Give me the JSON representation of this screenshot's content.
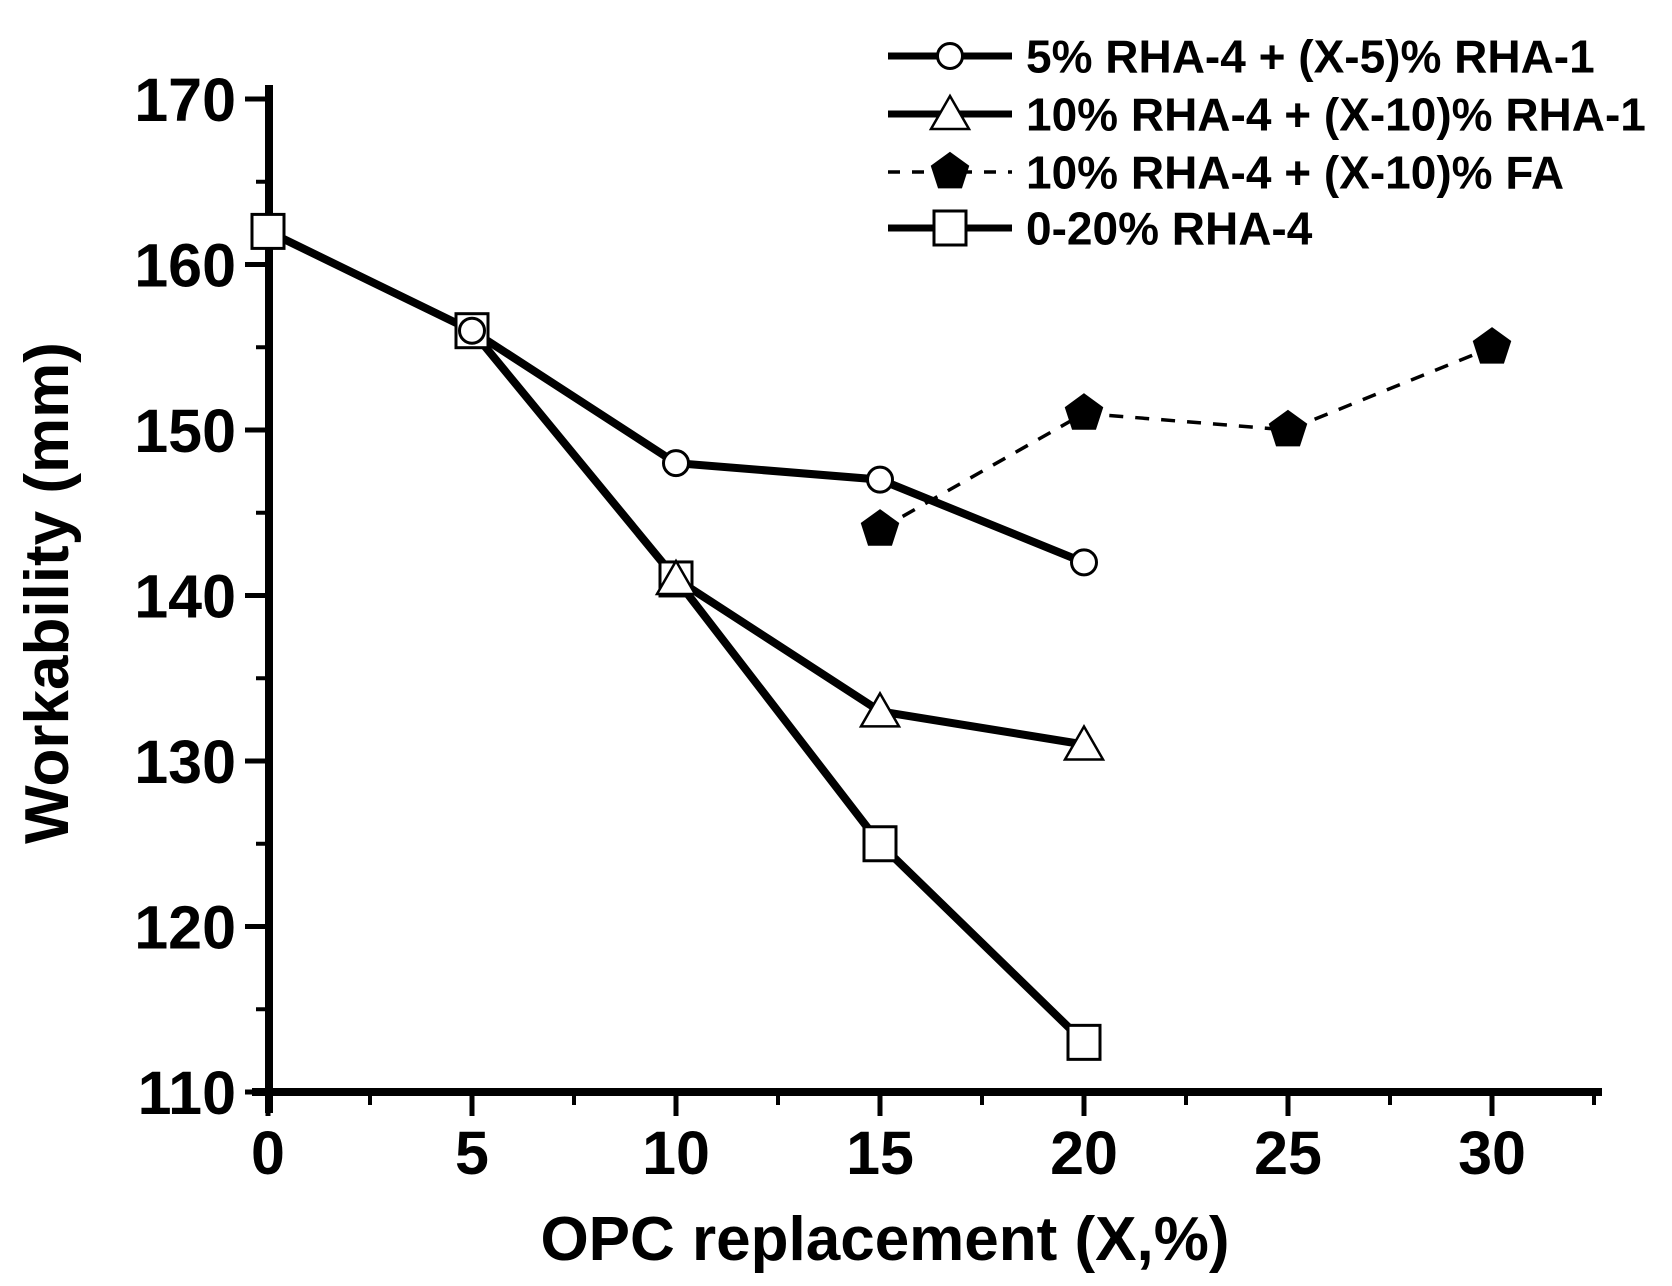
{
  "figure": {
    "background_color": "#ffffff",
    "ink_color": "#000000"
  },
  "chart_data": {
    "type": "line",
    "title": "",
    "xlabel": "OPC replacement (X,%)",
    "ylabel": "Workability (mm)",
    "xlim": [
      0,
      32.5
    ],
    "ylim": [
      110,
      170
    ],
    "x_major_ticks": [
      0,
      5,
      10,
      15,
      20,
      25,
      30
    ],
    "x_minor_ticks": [
      2.5,
      7.5,
      12.5,
      17.5,
      22.5,
      27.5,
      32.5
    ],
    "y_major_ticks": [
      110,
      120,
      130,
      140,
      150,
      160,
      170
    ],
    "y_minor_ticks": [
      115,
      125,
      135,
      145,
      155,
      165
    ],
    "grid": false,
    "legend_position": "top-right",
    "series": [
      {
        "name": "5% RHA-4  + (X-5)% RHA-1",
        "marker": "circle",
        "marker_fill": "open",
        "line_style": "solid",
        "x": [
          5,
          10,
          15,
          20
        ],
        "y": [
          156,
          148,
          147,
          142
        ]
      },
      {
        "name": "10% RHA-4  + (X-10)% RHA-1",
        "marker": "triangle",
        "marker_fill": "open",
        "line_style": "solid",
        "x": [
          10,
          15,
          20
        ],
        "y": [
          141,
          133,
          131
        ]
      },
      {
        "name": "10% RHA-4  + (X-10)% FA",
        "marker": "pentagon",
        "marker_fill": "solid",
        "line_style": "dashed",
        "x": [
          15,
          20,
          25,
          30
        ],
        "y": [
          144,
          151,
          150,
          155
        ]
      },
      {
        "name": "0-20% RHA-4",
        "marker": "square",
        "marker_fill": "open",
        "line_style": "solid",
        "x": [
          0,
          5,
          10,
          15,
          20
        ],
        "y": [
          162,
          156,
          141,
          125,
          113
        ]
      }
    ]
  }
}
